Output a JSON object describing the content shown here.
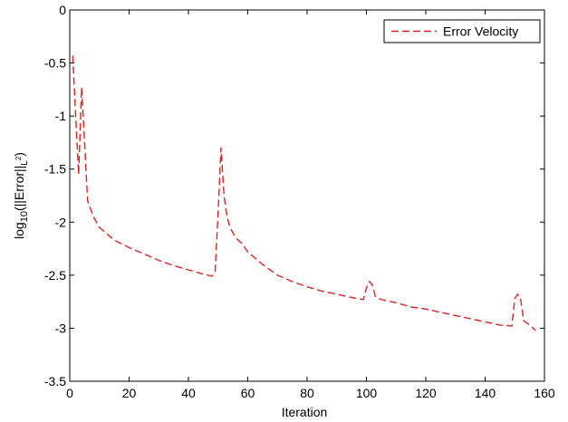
{
  "chart_data": {
    "type": "line",
    "xlabel": "Iteration",
    "ylabel": {
      "prefix": "log",
      "subscript": "10",
      "main": "(||Error||",
      "norm_subscript": "L",
      "norm_superscript": "2",
      "suffix": ")"
    },
    "xlim": [
      0,
      160
    ],
    "ylim": [
      -3.5,
      0
    ],
    "xticks": [
      "0",
      "20",
      "40",
      "60",
      "80",
      "100",
      "120",
      "140",
      "160"
    ],
    "yticks": [
      "0",
      "-0.5",
      "-1",
      "-1.5",
      "-2",
      "-2.5",
      "-3",
      "-3.5"
    ],
    "grid": false,
    "legend_position": "top-right",
    "series": [
      {
        "name": "Error Velocity",
        "color": "#dd2222",
        "line_style": "dashed",
        "x": [
          1,
          2,
          3,
          4,
          5,
          6,
          8,
          10,
          15,
          20,
          25,
          30,
          35,
          40,
          45,
          48,
          49,
          50,
          51,
          52,
          53,
          54,
          55,
          56,
          58,
          60,
          65,
          70,
          75,
          80,
          85,
          90,
          95,
          99,
          100,
          101,
          102,
          103,
          105,
          110,
          115,
          120,
          125,
          130,
          135,
          140,
          145,
          149,
          150,
          151,
          152,
          153,
          155,
          157
        ],
        "y": [
          -0.43,
          -1.0,
          -1.55,
          -0.73,
          -1.25,
          -1.8,
          -1.95,
          -2.05,
          -2.17,
          -2.24,
          -2.3,
          -2.36,
          -2.41,
          -2.45,
          -2.49,
          -2.51,
          -2.47,
          -1.9,
          -1.3,
          -1.75,
          -1.95,
          -2.05,
          -2.1,
          -2.15,
          -2.2,
          -2.28,
          -2.4,
          -2.5,
          -2.56,
          -2.61,
          -2.65,
          -2.68,
          -2.71,
          -2.73,
          -2.62,
          -2.56,
          -2.59,
          -2.7,
          -2.73,
          -2.76,
          -2.8,
          -2.82,
          -2.85,
          -2.88,
          -2.91,
          -2.94,
          -2.97,
          -2.98,
          -2.72,
          -2.68,
          -2.73,
          -2.93,
          -2.97,
          -3.02
        ]
      }
    ]
  }
}
